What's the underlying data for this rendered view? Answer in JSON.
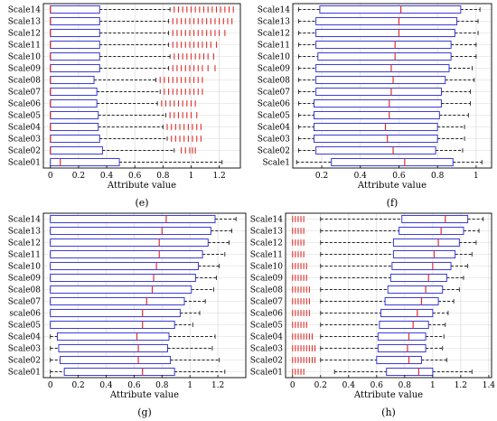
{
  "chart_data": [
    {
      "type": "box",
      "panel_label": "(e)",
      "categories": [
        "Scale01",
        "Scale02",
        "Scale03",
        "Scale04",
        "Scale05",
        "Scale06",
        "Scale07",
        "Scale08",
        "Scale09",
        "Scale10",
        "Scale11",
        "Scale12",
        "Scale13",
        "Scale14"
      ],
      "xlabel": "Attribute value",
      "xlim": [
        -0.05,
        1.35
      ],
      "xticks": [
        0,
        0.2,
        0.4,
        0.6,
        0.8,
        1,
        1.2
      ],
      "xtick_labels": [
        "0",
        "0.2",
        "0.4",
        "0.6",
        "0.8",
        "1",
        "1.2"
      ],
      "grid": true,
      "boxes": [
        {
          "q1": 0.0,
          "median": 0.07,
          "q3": 0.49,
          "whisker_lo": 0.0,
          "whisker_hi": 1.22,
          "outliers": []
        },
        {
          "q1": 0.0,
          "median": 0.0,
          "q3": 0.37,
          "whisker_lo": 0.0,
          "whisker_hi": 0.88,
          "outliers": [
            0.93,
            0.96,
            0.99,
            1.01,
            1.03
          ]
        },
        {
          "q1": 0.0,
          "median": 0.0,
          "q3": 0.35,
          "whisker_lo": 0.0,
          "whisker_hi": 0.83,
          "outliers": [
            0.86,
            0.89,
            0.92,
            0.95,
            0.98,
            1.01,
            1.04,
            1.07
          ]
        },
        {
          "q1": 0.0,
          "median": 0.0,
          "q3": 0.34,
          "whisker_lo": 0.0,
          "whisker_hi": 0.8,
          "outliers": [
            0.83,
            0.86,
            0.89,
            0.92,
            0.95,
            0.98,
            1.01,
            1.04,
            1.07
          ]
        },
        {
          "q1": 0.0,
          "median": 0.0,
          "q3": 0.34,
          "whisker_lo": 0.0,
          "whisker_hi": 0.82,
          "outliers": [
            0.85,
            0.88,
            0.91,
            0.94,
            0.97,
            1.0,
            1.04
          ]
        },
        {
          "q1": 0.0,
          "median": 0.0,
          "q3": 0.33,
          "whisker_lo": 0.0,
          "whisker_hi": 0.76,
          "outliers": [
            0.79,
            0.82,
            0.85,
            0.88,
            0.91,
            0.94,
            0.97,
            1.0,
            1.03
          ]
        },
        {
          "q1": 0.0,
          "median": 0.0,
          "q3": 0.33,
          "whisker_lo": 0.0,
          "whisker_hi": 0.78,
          "outliers": [
            0.81,
            0.84,
            0.87,
            0.9,
            0.93,
            0.96,
            0.99,
            1.02,
            1.05,
            1.08
          ]
        },
        {
          "q1": 0.0,
          "median": 0.0,
          "q3": 0.31,
          "whisker_lo": 0.0,
          "whisker_hi": 0.75,
          "outliers": [
            0.78,
            0.81,
            0.84,
            0.87,
            0.9,
            0.93,
            0.96,
            0.99,
            1.02,
            1.05,
            1.08
          ]
        },
        {
          "q1": 0.0,
          "median": 0.0,
          "q3": 0.35,
          "whisker_lo": 0.0,
          "whisker_hi": 0.84,
          "outliers": [
            0.87,
            0.9,
            0.93,
            0.96,
            0.99,
            1.02,
            1.05,
            1.08,
            1.12,
            1.17
          ]
        },
        {
          "q1": 0.0,
          "median": 0.0,
          "q3": 0.35,
          "whisker_lo": 0.0,
          "whisker_hi": 0.85,
          "outliers": [
            0.88,
            0.91,
            0.94,
            0.97,
            1.0,
            1.03,
            1.06,
            1.09,
            1.12,
            1.16
          ]
        },
        {
          "q1": 0.0,
          "median": 0.0,
          "q3": 0.35,
          "whisker_lo": 0.0,
          "whisker_hi": 0.84,
          "outliers": [
            0.87,
            0.9,
            0.93,
            0.96,
            0.99,
            1.02,
            1.05,
            1.08,
            1.11,
            1.14,
            1.18
          ]
        },
        {
          "q1": 0.0,
          "median": 0.0,
          "q3": 0.35,
          "whisker_lo": 0.0,
          "whisker_hi": 0.84,
          "outliers": [
            0.87,
            0.9,
            0.93,
            0.96,
            0.99,
            1.02,
            1.05,
            1.08,
            1.11,
            1.14,
            1.17,
            1.2,
            1.24
          ]
        },
        {
          "q1": 0.0,
          "median": 0.0,
          "q3": 0.35,
          "whisker_lo": 0.0,
          "whisker_hi": 0.84,
          "outliers": [
            0.87,
            0.9,
            0.93,
            0.96,
            0.99,
            1.02,
            1.05,
            1.08,
            1.11,
            1.14,
            1.17,
            1.2,
            1.23,
            1.26,
            1.29
          ]
        },
        {
          "q1": 0.0,
          "median": 0.0,
          "q3": 0.35,
          "whisker_lo": 0.0,
          "whisker_hi": 0.85,
          "outliers": [
            0.88,
            0.91,
            0.94,
            0.97,
            1.0,
            1.03,
            1.06,
            1.09,
            1.12,
            1.15,
            1.18,
            1.21,
            1.24,
            1.27,
            1.3
          ]
        }
      ]
    },
    {
      "type": "box",
      "panel_label": "(f)",
      "categories": [
        "Scale1",
        "Scale02",
        "Scale03",
        "Scale04",
        "Scale05",
        "Scale06",
        "Scale07",
        "Scale08",
        "Scale09",
        "Scale10",
        "Scale11",
        "Scale12",
        "Scale13",
        "Scale14"
      ],
      "xlabel": "Attribute value",
      "xlim": [
        0.05,
        1.08
      ],
      "xticks": [
        0.2,
        0.4,
        0.6,
        0.8,
        1
      ],
      "xtick_labels": [
        "0.2",
        "0.4",
        "0.6",
        "0.8",
        "1"
      ],
      "grid": true,
      "boxes": [
        {
          "q1": 0.25,
          "median": 0.63,
          "q3": 0.88,
          "whisker_lo": 0.07,
          "whisker_hi": 1.03,
          "outliers": []
        },
        {
          "q1": 0.17,
          "median": 0.57,
          "q3": 0.79,
          "whisker_lo": 0.08,
          "whisker_hi": 0.93,
          "outliers": []
        },
        {
          "q1": 0.16,
          "median": 0.54,
          "q3": 0.8,
          "whisker_lo": 0.08,
          "whisker_hi": 0.94,
          "outliers": []
        },
        {
          "q1": 0.16,
          "median": 0.53,
          "q3": 0.8,
          "whisker_lo": 0.08,
          "whisker_hi": 0.94,
          "outliers": []
        },
        {
          "q1": 0.16,
          "median": 0.55,
          "q3": 0.81,
          "whisker_lo": 0.08,
          "whisker_hi": 0.96,
          "outliers": []
        },
        {
          "q1": 0.16,
          "median": 0.55,
          "q3": 0.82,
          "whisker_lo": 0.08,
          "whisker_hi": 0.97,
          "outliers": []
        },
        {
          "q1": 0.17,
          "median": 0.56,
          "q3": 0.82,
          "whisker_lo": 0.08,
          "whisker_hi": 0.97,
          "outliers": []
        },
        {
          "q1": 0.17,
          "median": 0.57,
          "q3": 0.84,
          "whisker_lo": 0.08,
          "whisker_hi": 0.99,
          "outliers": []
        },
        {
          "q1": 0.17,
          "median": 0.56,
          "q3": 0.86,
          "whisker_lo": 0.08,
          "whisker_hi": 0.98,
          "outliers": []
        },
        {
          "q1": 0.18,
          "median": 0.58,
          "q3": 0.87,
          "whisker_lo": 0.08,
          "whisker_hi": 1.0,
          "outliers": []
        },
        {
          "q1": 0.17,
          "median": 0.58,
          "q3": 0.87,
          "whisker_lo": 0.08,
          "whisker_hi": 1.0,
          "outliers": []
        },
        {
          "q1": 0.17,
          "median": 0.6,
          "q3": 0.89,
          "whisker_lo": 0.08,
          "whisker_hi": 1.01,
          "outliers": []
        },
        {
          "q1": 0.17,
          "median": 0.6,
          "q3": 0.9,
          "whisker_lo": 0.08,
          "whisker_hi": 1.01,
          "outliers": []
        },
        {
          "q1": 0.19,
          "median": 0.61,
          "q3": 0.92,
          "whisker_lo": 0.08,
          "whisker_hi": 1.02,
          "outliers": []
        }
      ]
    },
    {
      "type": "box",
      "panel_label": "(g)",
      "categories": [
        "Scale01",
        "Scale02",
        "Scale03",
        "Scale04",
        "Scale05",
        "scale06",
        "Scale07",
        "Scale08",
        "Scale09",
        "Scale10",
        "Scale11",
        "Scale12",
        "Scale13",
        "Scale14"
      ],
      "xlabel": "Attribute value",
      "xlim": [
        -0.05,
        1.4
      ],
      "xticks": [
        0,
        0.2,
        0.4,
        0.6,
        0.8,
        1,
        1.2
      ],
      "xtick_labels": [
        "0",
        "0.2",
        "0.4",
        "0.6",
        "0.8",
        "1",
        "1.2"
      ],
      "grid": true,
      "boxes": [
        {
          "q1": 0.1,
          "median": 0.66,
          "q3": 0.89,
          "whisker_lo": 0.0,
          "whisker_hi": 1.25,
          "outliers": []
        },
        {
          "q1": 0.07,
          "median": 0.63,
          "q3": 0.86,
          "whisker_lo": 0.0,
          "whisker_hi": 1.21,
          "outliers": []
        },
        {
          "q1": 0.06,
          "median": 0.63,
          "q3": 0.84,
          "whisker_lo": 0.0,
          "whisker_hi": 1.16,
          "outliers": []
        },
        {
          "q1": 0.05,
          "median": 0.62,
          "q3": 0.85,
          "whisker_lo": 0.0,
          "whisker_hi": 1.18,
          "outliers": []
        },
        {
          "q1": 0.0,
          "median": 0.66,
          "q3": 0.89,
          "whisker_lo": 0.0,
          "whisker_hi": 1.02,
          "outliers": []
        },
        {
          "q1": 0.0,
          "median": 0.66,
          "q3": 0.93,
          "whisker_lo": 0.0,
          "whisker_hi": 1.07,
          "outliers": []
        },
        {
          "q1": 0.0,
          "median": 0.69,
          "q3": 0.96,
          "whisker_lo": 0.0,
          "whisker_hi": 1.11,
          "outliers": []
        },
        {
          "q1": 0.0,
          "median": 0.73,
          "q3": 1.01,
          "whisker_lo": 0.0,
          "whisker_hi": 1.17,
          "outliers": []
        },
        {
          "q1": 0.0,
          "median": 0.74,
          "q3": 1.04,
          "whisker_lo": 0.0,
          "whisker_hi": 1.19,
          "outliers": []
        },
        {
          "q1": 0.0,
          "median": 0.76,
          "q3": 1.06,
          "whisker_lo": 0.0,
          "whisker_hi": 1.21,
          "outliers": []
        },
        {
          "q1": 0.0,
          "median": 0.78,
          "q3": 1.09,
          "whisker_lo": 0.0,
          "whisker_hi": 1.25,
          "outliers": []
        },
        {
          "q1": 0.0,
          "median": 0.78,
          "q3": 1.13,
          "whisker_lo": 0.0,
          "whisker_hi": 1.28,
          "outliers": []
        },
        {
          "q1": 0.0,
          "median": 0.8,
          "q3": 1.15,
          "whisker_lo": 0.0,
          "whisker_hi": 1.3,
          "outliers": []
        },
        {
          "q1": 0.0,
          "median": 0.83,
          "q3": 1.18,
          "whisker_lo": 0.0,
          "whisker_hi": 1.33,
          "outliers": []
        }
      ]
    },
    {
      "type": "box",
      "panel_label": "(h)",
      "categories": [
        "Scale01",
        "Scale02",
        "Scale03",
        "Scale04",
        "Scale05",
        "Scale06",
        "Scale07",
        "Scale08",
        "Scale09",
        "Scale10",
        "Scale11",
        "Scale12",
        "Scale13",
        "Scale14"
      ],
      "xlabel": "Attribute value",
      "xlim": [
        -0.05,
        1.42
      ],
      "xticks": [
        0,
        0.2,
        0.4,
        0.6,
        0.8,
        1,
        1.2,
        1.4
      ],
      "xtick_labels": [
        "0",
        "0.2",
        "0.4",
        "0.6",
        "0.8",
        "1",
        "1.2",
        "1.4"
      ],
      "grid": true,
      "boxes": [
        {
          "q1": 0.67,
          "median": 0.9,
          "q3": 1.0,
          "whisker_lo": 0.3,
          "whisker_hi": 1.28,
          "outliers": [
            0.0,
            0.02,
            0.04,
            0.06,
            0.08
          ]
        },
        {
          "q1": 0.6,
          "median": 0.83,
          "q3": 0.92,
          "whisker_lo": 0.2,
          "whisker_hi": 1.1,
          "outliers": [
            0.0,
            0.02,
            0.04,
            0.06,
            0.08,
            0.1,
            0.12,
            0.14,
            0.16
          ]
        },
        {
          "q1": 0.61,
          "median": 0.82,
          "q3": 0.95,
          "whisker_lo": 0.2,
          "whisker_hi": 1.07,
          "outliers": [
            0.0,
            0.02,
            0.04,
            0.06,
            0.08,
            0.1,
            0.12,
            0.14,
            0.16
          ]
        },
        {
          "q1": 0.61,
          "median": 0.83,
          "q3": 0.95,
          "whisker_lo": 0.2,
          "whisker_hi": 1.08,
          "outliers": [
            0.0,
            0.02,
            0.04,
            0.06,
            0.08,
            0.1,
            0.12,
            0.14
          ]
        },
        {
          "q1": 0.62,
          "median": 0.86,
          "q3": 0.97,
          "whisker_lo": 0.2,
          "whisker_hi": 1.09,
          "outliers": [
            0.0,
            0.02,
            0.04,
            0.06,
            0.08,
            0.1
          ]
        },
        {
          "q1": 0.63,
          "median": 0.89,
          "q3": 1.0,
          "whisker_lo": 0.2,
          "whisker_hi": 1.11,
          "outliers": [
            0.0,
            0.02,
            0.04,
            0.06,
            0.08,
            0.1,
            0.12
          ]
        },
        {
          "q1": 0.66,
          "median": 0.92,
          "q3": 1.04,
          "whisker_lo": 0.2,
          "whisker_hi": 1.15,
          "outliers": [
            0.0,
            0.02,
            0.04,
            0.06,
            0.08,
            0.1,
            0.12
          ]
        },
        {
          "q1": 0.68,
          "median": 0.95,
          "q3": 1.07,
          "whisker_lo": 0.2,
          "whisker_hi": 1.19,
          "outliers": [
            0.0,
            0.02,
            0.04,
            0.06,
            0.08,
            0.1,
            0.12
          ]
        },
        {
          "q1": 0.7,
          "median": 0.97,
          "q3": 1.1,
          "whisker_lo": 0.2,
          "whisker_hi": 1.22,
          "outliers": [
            0.0,
            0.02,
            0.04,
            0.06,
            0.08,
            0.1
          ]
        },
        {
          "q1": 0.71,
          "median": 1.0,
          "q3": 1.13,
          "whisker_lo": 0.2,
          "whisker_hi": 1.25,
          "outliers": [
            0.0,
            0.02,
            0.04,
            0.06,
            0.08,
            0.1
          ]
        },
        {
          "q1": 0.72,
          "median": 1.01,
          "q3": 1.16,
          "whisker_lo": 0.2,
          "whisker_hi": 1.28,
          "outliers": [
            0.0,
            0.02,
            0.04,
            0.06,
            0.08
          ]
        },
        {
          "q1": 0.72,
          "median": 1.04,
          "q3": 1.19,
          "whisker_lo": 0.2,
          "whisker_hi": 1.31,
          "outliers": [
            0.0,
            0.02,
            0.04,
            0.06,
            0.08
          ]
        },
        {
          "q1": 0.76,
          "median": 1.06,
          "q3": 1.22,
          "whisker_lo": 0.2,
          "whisker_hi": 1.33,
          "outliers": [
            0.0,
            0.02,
            0.04,
            0.06,
            0.08
          ]
        },
        {
          "q1": 0.78,
          "median": 1.09,
          "q3": 1.25,
          "whisker_lo": 0.2,
          "whisker_hi": 1.36,
          "outliers": [
            0.0,
            0.02,
            0.04,
            0.06,
            0.08
          ]
        }
      ]
    }
  ],
  "colors": {
    "box": "#3a3ad6",
    "median": "#e0302a",
    "outlier": "#e0302a",
    "whisker": "#222222",
    "grid": "#d8d8d8",
    "axis": "#000000"
  }
}
